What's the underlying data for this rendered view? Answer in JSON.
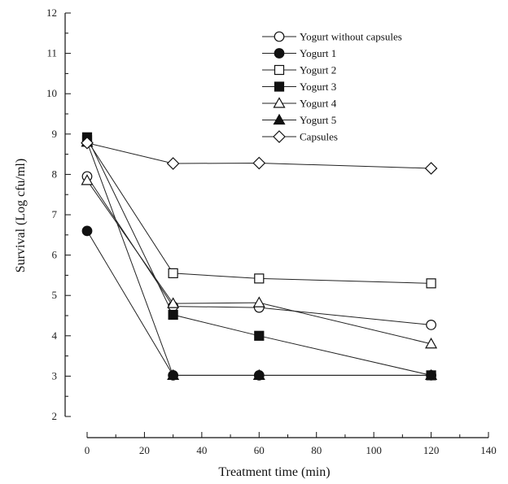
{
  "chart_data": {
    "type": "line",
    "xlabel": "Treatment time (min)",
    "ylabel": "Survival (Log cfu/ml)",
    "xlim": [
      0,
      140
    ],
    "ylim": [
      2,
      12
    ],
    "xticks": [
      0,
      20,
      40,
      60,
      80,
      100,
      120,
      140
    ],
    "yticks": [
      2,
      3,
      4,
      5,
      6,
      7,
      8,
      9,
      10,
      11,
      12
    ],
    "grid": false,
    "legend_position": "top-right",
    "series": [
      {
        "name": "Yogurt without capsules",
        "marker": "circle-open",
        "x": [
          0,
          30,
          60,
          120
        ],
        "y": [
          7.95,
          4.73,
          4.7,
          4.27
        ]
      },
      {
        "name": "Yogurt 1",
        "marker": "circle-filled",
        "x": [
          0,
          30,
          60,
          120
        ],
        "y": [
          6.6,
          3.02,
          3.02,
          3.02
        ]
      },
      {
        "name": "Yogurt 2",
        "marker": "square-open",
        "x": [
          0,
          30,
          60,
          120
        ],
        "y": [
          8.85,
          5.55,
          5.42,
          5.3
        ]
      },
      {
        "name": "Yogurt 3",
        "marker": "square-filled",
        "x": [
          0,
          30,
          60,
          120
        ],
        "y": [
          8.92,
          4.52,
          4.0,
          3.02
        ]
      },
      {
        "name": "Yogurt 4",
        "marker": "triangle-open",
        "x": [
          0,
          30,
          60,
          120
        ],
        "y": [
          7.85,
          4.8,
          4.82,
          3.8
        ]
      },
      {
        "name": "Yogurt 5",
        "marker": "triangle-filled",
        "x": [
          0,
          30,
          60,
          120
        ],
        "y": [
          8.8,
          3.02,
          3.02,
          3.02
        ]
      },
      {
        "name": "Capsules",
        "marker": "diamond-open",
        "x": [
          0,
          30,
          60,
          120
        ],
        "y": [
          8.78,
          8.27,
          8.28,
          8.15
        ]
      }
    ]
  }
}
